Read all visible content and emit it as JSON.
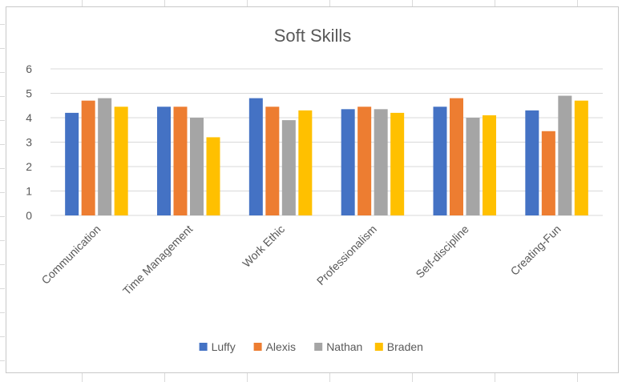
{
  "chart_data": {
    "type": "bar",
    "title": "Soft Skills",
    "categories": [
      "Communication",
      "Time Management",
      "Work Ethic",
      "Professionalism",
      "Self-discipline",
      "Creating-Fun"
    ],
    "series": [
      {
        "name": "Luffy",
        "color": "#4472C4",
        "values": [
          4.2,
          4.45,
          4.8,
          4.35,
          4.45,
          4.3
        ]
      },
      {
        "name": "Alexis",
        "color": "#ED7D31",
        "values": [
          4.7,
          4.45,
          4.45,
          4.45,
          4.8,
          3.45
        ]
      },
      {
        "name": "Nathan",
        "color": "#A5A5A5",
        "values": [
          4.8,
          4.0,
          3.9,
          4.35,
          4.0,
          4.9
        ]
      },
      {
        "name": "Braden",
        "color": "#FFC000",
        "values": [
          4.45,
          3.2,
          4.3,
          4.2,
          4.1,
          4.7
        ]
      }
    ],
    "xlabel": "",
    "ylabel": "",
    "ylim": [
      0,
      6
    ],
    "yticks": [
      0,
      1,
      2,
      3,
      4,
      5,
      6
    ],
    "grid": true,
    "legend_position": "bottom"
  }
}
